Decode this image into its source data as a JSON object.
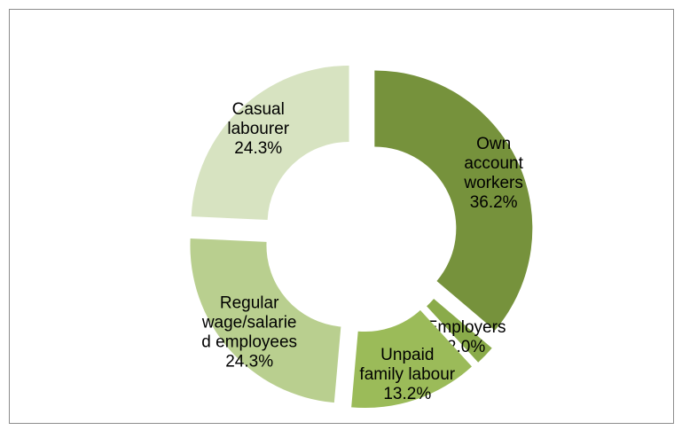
{
  "chart_data": {
    "type": "pie",
    "style": "donut",
    "slices": [
      {
        "name": "Own account workers",
        "value": 36.2,
        "label_lines": [
          "Own",
          "account",
          "workers",
          "36.2%"
        ],
        "color": "#76923c"
      },
      {
        "name": "Employers",
        "value": 2.0,
        "label_lines": [
          "Employers",
          "2.0%"
        ],
        "color": "#8aab4a"
      },
      {
        "name": "Unpaid family labour",
        "value": 13.2,
        "label_lines": [
          "Unpaid",
          "family labour",
          "13.2%"
        ],
        "color": "#9bbb59"
      },
      {
        "name": "Regular wage/salaried employees",
        "value": 24.3,
        "label_lines": [
          "Regular",
          "wage/salarie",
          "d employees",
          "24.3%"
        ],
        "color": "#b9cf8f"
      },
      {
        "name": "Casual labourer",
        "value": 24.3,
        "label_lines": [
          "Casual",
          "labourer",
          "24.3%"
        ],
        "color": "#d7e3c1"
      }
    ]
  }
}
